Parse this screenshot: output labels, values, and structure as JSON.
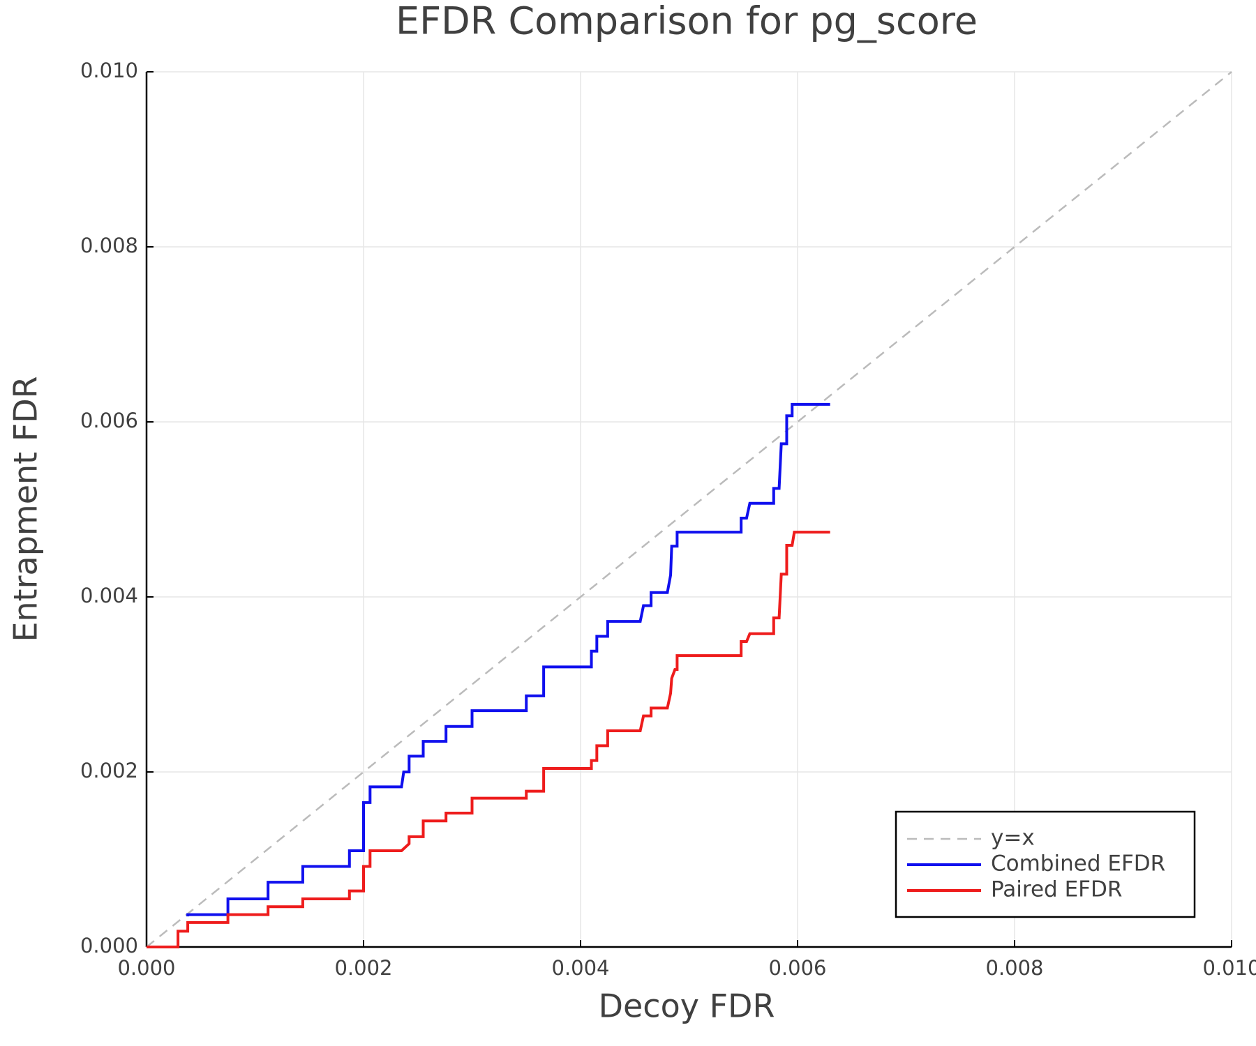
{
  "chart_data": {
    "type": "line",
    "title": "EFDR Comparison for pg_score",
    "x_label": "Decoy FDR",
    "y_label": "Entrapment FDR",
    "xlim": [
      0,
      0.01
    ],
    "ylim": [
      0,
      0.01
    ],
    "xticks": [
      {
        "value": 0,
        "label": "0.000"
      },
      {
        "value": 0.002,
        "label": "0.002"
      },
      {
        "value": 0.004,
        "label": "0.004"
      },
      {
        "value": 0.006,
        "label": "0.006"
      },
      {
        "value": 0.008,
        "label": "0.008"
      },
      {
        "value": 0.01,
        "label": "0.010"
      }
    ],
    "yticks": [
      {
        "value": 0,
        "label": "0.000"
      },
      {
        "value": 0.002,
        "label": "0.002"
      },
      {
        "value": 0.004,
        "label": "0.004"
      },
      {
        "value": 0.006,
        "label": "0.006"
      },
      {
        "value": 0.008,
        "label": "0.008"
      },
      {
        "value": 0.01,
        "label": "0.010"
      }
    ],
    "grid": true,
    "legend": "bottom-right",
    "series": [
      {
        "name": "y=x",
        "color": "#bbbbbb",
        "style": "dash",
        "x": [
          0,
          0.01
        ],
        "values": [
          0,
          0.01
        ]
      },
      {
        "name": "Combined EFDR",
        "color": "#1010ee",
        "style": "solid",
        "x": [
          0.00038,
          0.00038,
          0.00075,
          0.00075,
          0.00112,
          0.00112,
          0.00144,
          0.00144,
          0.00187,
          0.00187,
          0.002,
          0.002,
          0.00206,
          0.00206,
          0.00235,
          0.00237,
          0.00242,
          0.00242,
          0.00255,
          0.00255,
          0.00276,
          0.00276,
          0.003,
          0.003,
          0.0035,
          0.0035,
          0.00366,
          0.00366,
          0.0041,
          0.0041,
          0.00415,
          0.00415,
          0.00425,
          0.00425,
          0.00455,
          0.00458,
          0.00465,
          0.00465,
          0.0048,
          0.00483,
          0.00484,
          0.00489,
          0.00489,
          0.00548,
          0.00548,
          0.00553,
          0.00556,
          0.00578,
          0.00578,
          0.00583,
          0.00585,
          0.0059,
          0.0059,
          0.00595,
          0.00595,
          0.0063
        ],
        "values": [
          0.00035,
          0.00037,
          0.00037,
          0.00055,
          0.00055,
          0.00074,
          0.00074,
          0.00092,
          0.00092,
          0.0011,
          0.0011,
          0.00165,
          0.00165,
          0.00183,
          0.00183,
          0.002,
          0.002,
          0.00218,
          0.00218,
          0.00235,
          0.00235,
          0.00252,
          0.00252,
          0.0027,
          0.0027,
          0.00287,
          0.00287,
          0.0032,
          0.0032,
          0.00338,
          0.00338,
          0.00355,
          0.00355,
          0.00372,
          0.00372,
          0.0039,
          0.0039,
          0.00405,
          0.00405,
          0.00425,
          0.00458,
          0.00458,
          0.00474,
          0.00474,
          0.0049,
          0.0049,
          0.00507,
          0.00507,
          0.00524,
          0.00524,
          0.00575,
          0.00575,
          0.00607,
          0.00607,
          0.0062,
          0.0062
        ]
      },
      {
        "name": "Paired EFDR",
        "color": "#ee1c1c",
        "style": "solid",
        "x": [
          0,
          0.00029,
          0.00029,
          0.00038,
          0.00038,
          0.00075,
          0.00075,
          0.00112,
          0.00112,
          0.00144,
          0.00144,
          0.00187,
          0.00187,
          0.002,
          0.002,
          0.00206,
          0.00206,
          0.00235,
          0.00242,
          0.00242,
          0.00255,
          0.00255,
          0.00276,
          0.00276,
          0.003,
          0.003,
          0.0035,
          0.0035,
          0.00366,
          0.00366,
          0.0041,
          0.0041,
          0.00415,
          0.00415,
          0.00425,
          0.00425,
          0.00455,
          0.00458,
          0.00465,
          0.00465,
          0.0048,
          0.00483,
          0.00484,
          0.00487,
          0.00489,
          0.00489,
          0.00548,
          0.00548,
          0.00553,
          0.00556,
          0.00578,
          0.00578,
          0.00583,
          0.00585,
          0.0059,
          0.0059,
          0.00595,
          0.00597,
          0.0063
        ],
        "values": [
          0,
          0,
          0.00018,
          0.00018,
          0.00028,
          0.00028,
          0.00037,
          0.00037,
          0.00046,
          0.00046,
          0.00055,
          0.00055,
          0.00064,
          0.00064,
          0.00092,
          0.00092,
          0.0011,
          0.0011,
          0.00118,
          0.00126,
          0.00126,
          0.00144,
          0.00144,
          0.00153,
          0.00153,
          0.0017,
          0.0017,
          0.00178,
          0.00178,
          0.00204,
          0.00204,
          0.00213,
          0.00213,
          0.0023,
          0.0023,
          0.00247,
          0.00247,
          0.00264,
          0.00264,
          0.00273,
          0.00273,
          0.0029,
          0.00307,
          0.00317,
          0.00317,
          0.00333,
          0.00333,
          0.00349,
          0.00349,
          0.00358,
          0.00358,
          0.00376,
          0.00376,
          0.00426,
          0.00426,
          0.00459,
          0.00459,
          0.00474,
          0.00474
        ]
      }
    ]
  }
}
